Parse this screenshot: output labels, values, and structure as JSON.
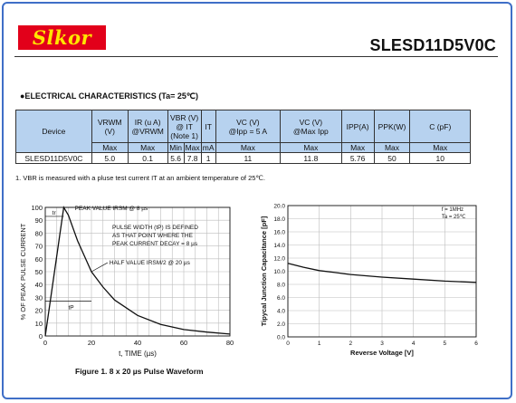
{
  "brand": {
    "logo_text": "Slkor",
    "part_number": "SLESD11D5V0C"
  },
  "section_title": "●ELECTRICAL CHARACTERISTICS (Ta= 25℃)",
  "table": {
    "headers": [
      "Device",
      "VRWM\n(V)",
      "IR (u A)\n@VRWM",
      "VBR (V)\n@ IT\n(Note 1)",
      "IT",
      "VC (V)\n@Ipp = 5 A",
      "VC (V)\n@Max Ipp",
      "IPP(A)",
      "PPK(W)",
      "C (pF)"
    ],
    "subheaders": [
      "Max",
      "Max",
      "Min",
      "Max",
      "mA",
      "Max",
      "Max",
      "Max",
      "Max",
      "Max"
    ],
    "row": [
      "SLESD11D5V0C",
      "5.0",
      "0.1",
      "5.6",
      "7.8",
      "1",
      "11",
      "11.8",
      "5.76",
      "50",
      "10"
    ]
  },
  "note": "1. VBR is measured with a pluse test current IT at an ambient temperature of 25℃.",
  "figure_caption": "Figure 1. 8 x 20 µs Pulse Waveform",
  "chart_data": [
    {
      "type": "line",
      "title": "",
      "xlabel": "t, TIME (µs)",
      "ylabel": "% OF PEAK PULSE CURRENT",
      "xlim": [
        0,
        80
      ],
      "ylim": [
        0,
        100
      ],
      "xticks": [
        0,
        20,
        40,
        60,
        80
      ],
      "yticks": [
        0,
        10,
        20,
        30,
        40,
        50,
        60,
        70,
        80,
        90,
        100
      ],
      "grid": true,
      "series": [
        {
          "x": [
            0,
            2,
            4,
            6,
            8,
            10,
            14,
            18,
            20,
            25,
            30,
            40,
            50,
            60,
            70,
            80
          ],
          "y": [
            0,
            25,
            50,
            75,
            100,
            94,
            74,
            58,
            50,
            38,
            28,
            16,
            9,
            5,
            3,
            1.5
          ]
        }
      ],
      "annotations": {
        "peak_value": "PEAK VALUE IRSM @ 8 µs",
        "pulse_width": "PULSE WIDTH (tP) IS DEFINED\nAS THAT POINT WHERE THE\nPEAK CURRENT DECAY = 8 µs",
        "half_value": "HALF VALUE IRSM/2 @ 20 µs",
        "tr_label": "tr",
        "tp_label": "tP"
      }
    },
    {
      "type": "line",
      "title": "",
      "xlabel": "Reverse Voltage [V]",
      "ylabel": "Tipycal Junction Capacitance [pF]",
      "xlim": [
        0,
        6
      ],
      "ylim": [
        0,
        20
      ],
      "xticks": [
        0,
        1,
        2,
        3,
        4,
        5,
        6
      ],
      "yticks": [
        0.0,
        2.0,
        4.0,
        6.0,
        8.0,
        10.0,
        12.0,
        14.0,
        16.0,
        18.0,
        20.0
      ],
      "grid": true,
      "legend_text": [
        "f = 1MHz",
        "Ta = 25℃"
      ],
      "series": [
        {
          "x": [
            0,
            0.5,
            1,
            1.5,
            2,
            3,
            4,
            5,
            6
          ],
          "y": [
            11.2,
            10.6,
            10.1,
            9.8,
            9.5,
            9.1,
            8.8,
            8.5,
            8.3
          ]
        }
      ]
    }
  ]
}
